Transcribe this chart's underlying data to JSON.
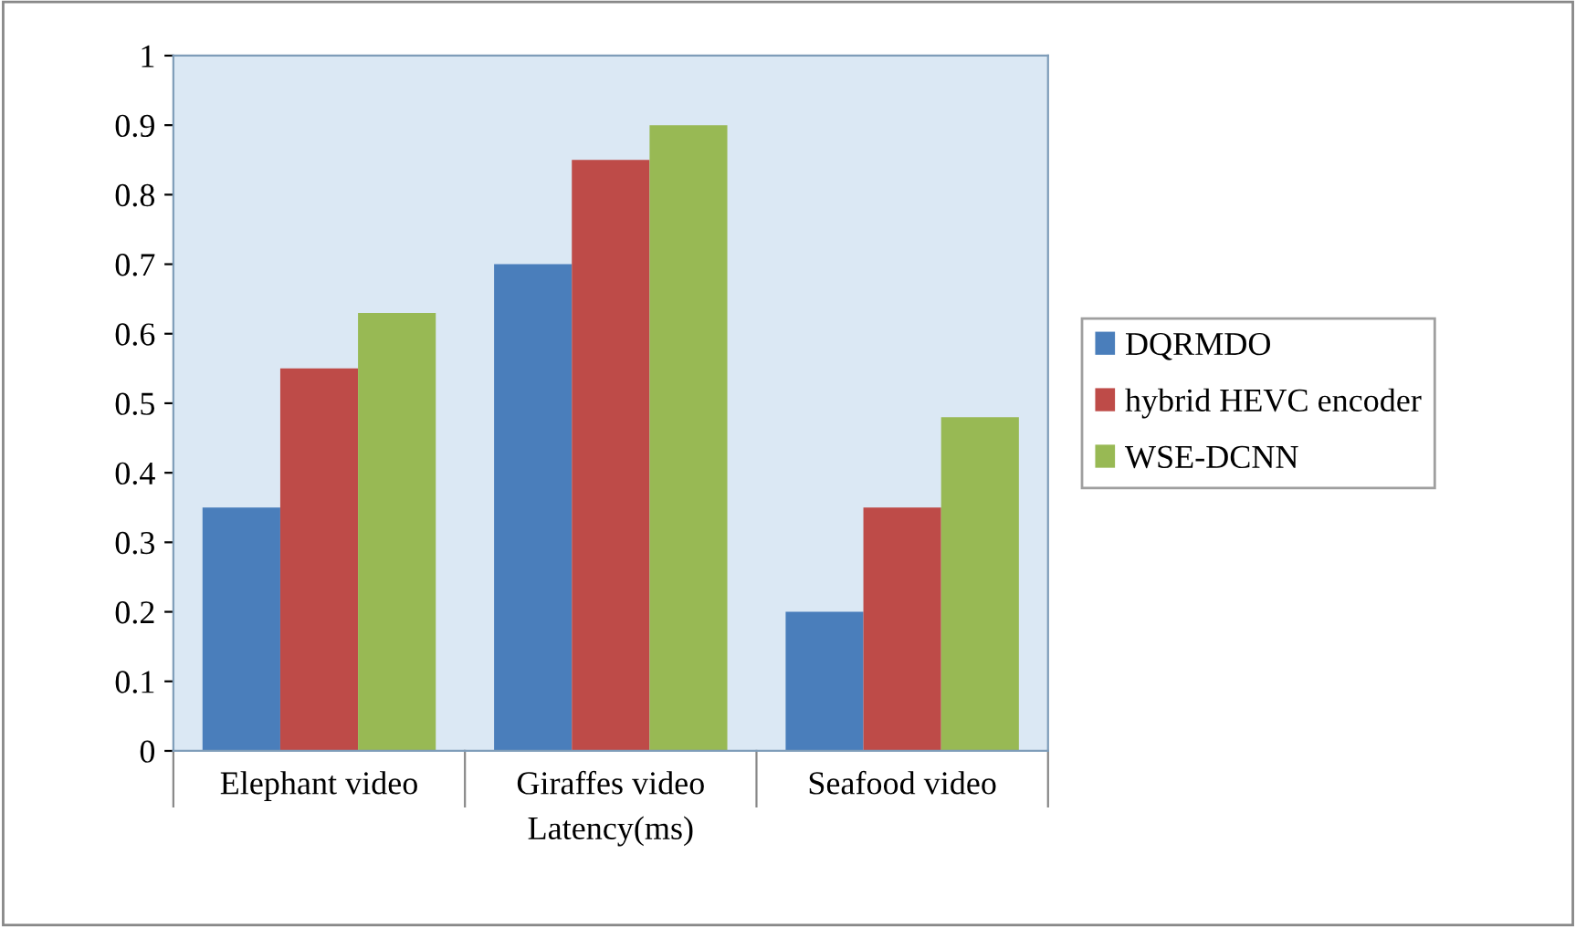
{
  "chart_data": {
    "type": "bar",
    "xlabel": "Latency(ms)",
    "categories": [
      "Elephant video",
      "Giraffes video",
      "Seafood video"
    ],
    "series": [
      {
        "name": "DQRMDO",
        "color": "#4a7ebb",
        "values": [
          0.35,
          0.7,
          0.2
        ]
      },
      {
        "name": "hybrid HEVC encoder",
        "color": "#be4b48",
        "values": [
          0.55,
          0.85,
          0.35
        ]
      },
      {
        "name": "WSE-DCNN",
        "color": "#98b954",
        "values": [
          0.63,
          0.9,
          0.48
        ]
      }
    ],
    "ylim": [
      0,
      1
    ],
    "yticks": [
      0,
      0.1,
      0.2,
      0.3,
      0.4,
      0.5,
      0.6,
      0.7,
      0.8,
      0.9,
      1
    ],
    "grid": false,
    "legend": "right"
  }
}
